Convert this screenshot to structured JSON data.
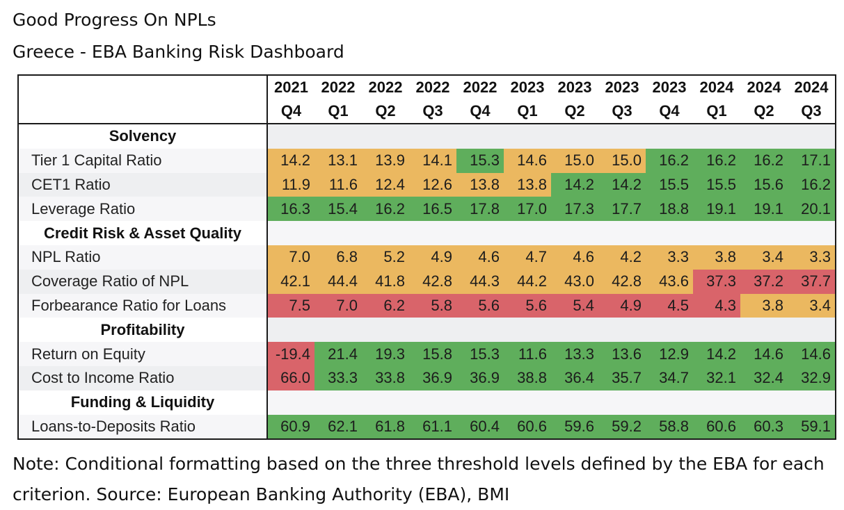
{
  "header": {
    "title": "Good Progress On NPLs",
    "subtitle": "Greece - EBA Banking Risk Dashboard"
  },
  "note": "Note: Conditional formatting based on the three threshold levels defined by the EBA for each criterion. Source: European Banking Authority (EBA), BMI",
  "colors": {
    "amber": "#EBB860",
    "green": "#5FAE5C",
    "red": "#D9646A",
    "section_bg": "#EEEFF1"
  },
  "chart_data": {
    "type": "table",
    "title": "Good Progress On NPLs",
    "subtitle": "Greece - EBA Banking Risk Dashboard",
    "columns": [
      {
        "year": "2021",
        "quarter": "Q4"
      },
      {
        "year": "2022",
        "quarter": "Q1"
      },
      {
        "year": "2022",
        "quarter": "Q2"
      },
      {
        "year": "2022",
        "quarter": "Q3"
      },
      {
        "year": "2022",
        "quarter": "Q4"
      },
      {
        "year": "2023",
        "quarter": "Q1"
      },
      {
        "year": "2023",
        "quarter": "Q2"
      },
      {
        "year": "2023",
        "quarter": "Q3"
      },
      {
        "year": "2023",
        "quarter": "Q4"
      },
      {
        "year": "2024",
        "quarter": "Q1"
      },
      {
        "year": "2024",
        "quarter": "Q2"
      },
      {
        "year": "2024",
        "quarter": "Q3"
      }
    ],
    "rows": [
      {
        "type": "section",
        "label": "Solvency"
      },
      {
        "type": "metric",
        "label": "Tier 1 Capital Ratio",
        "values": [
          "14.2",
          "13.1",
          "13.9",
          "14.1",
          "15.3",
          "14.6",
          "15.0",
          "15.0",
          "16.2",
          "16.2",
          "16.2",
          "17.1"
        ],
        "status": [
          "amber",
          "amber",
          "amber",
          "amber",
          "green",
          "amber",
          "amber",
          "amber",
          "green",
          "green",
          "green",
          "green"
        ]
      },
      {
        "type": "metric",
        "label": "CET1 Ratio",
        "values": [
          "11.9",
          "11.6",
          "12.4",
          "12.6",
          "13.8",
          "13.8",
          "14.2",
          "14.2",
          "15.5",
          "15.5",
          "15.6",
          "16.2"
        ],
        "status": [
          "amber",
          "amber",
          "amber",
          "amber",
          "amber",
          "amber",
          "green",
          "green",
          "green",
          "green",
          "green",
          "green"
        ]
      },
      {
        "type": "metric",
        "label": "Leverage Ratio",
        "values": [
          "16.3",
          "15.4",
          "16.2",
          "16.5",
          "17.8",
          "17.0",
          "17.3",
          "17.7",
          "18.8",
          "19.1",
          "19.1",
          "20.1"
        ],
        "status": [
          "green",
          "green",
          "green",
          "green",
          "green",
          "green",
          "green",
          "green",
          "green",
          "green",
          "green",
          "green"
        ]
      },
      {
        "type": "section",
        "label": "Credit Risk & Asset Quality"
      },
      {
        "type": "metric",
        "label": "NPL Ratio",
        "values": [
          "7.0",
          "6.8",
          "5.2",
          "4.9",
          "4.6",
          "4.7",
          "4.6",
          "4.2",
          "3.3",
          "3.8",
          "3.4",
          "3.3"
        ],
        "status": [
          "amber",
          "amber",
          "amber",
          "amber",
          "amber",
          "amber",
          "amber",
          "amber",
          "amber",
          "amber",
          "amber",
          "amber"
        ]
      },
      {
        "type": "metric",
        "label": "Coverage Ratio of NPL",
        "values": [
          "42.1",
          "44.4",
          "41.8",
          "42.8",
          "44.3",
          "44.2",
          "43.0",
          "42.8",
          "43.6",
          "37.3",
          "37.2",
          "37.7"
        ],
        "status": [
          "amber",
          "amber",
          "amber",
          "amber",
          "amber",
          "amber",
          "amber",
          "amber",
          "amber",
          "red",
          "red",
          "red"
        ]
      },
      {
        "type": "metric",
        "label": "Forbearance Ratio for Loans",
        "values": [
          "7.5",
          "7.0",
          "6.2",
          "5.8",
          "5.6",
          "5.6",
          "5.4",
          "4.9",
          "4.5",
          "4.3",
          "3.8",
          "3.4"
        ],
        "status": [
          "red",
          "red",
          "red",
          "red",
          "red",
          "red",
          "red",
          "red",
          "red",
          "red",
          "amber",
          "amber"
        ]
      },
      {
        "type": "section",
        "label": "Profitability"
      },
      {
        "type": "metric",
        "label": "Return on Equity",
        "values": [
          "-19.4",
          "21.4",
          "19.3",
          "15.8",
          "15.3",
          "11.6",
          "13.3",
          "13.6",
          "12.9",
          "14.2",
          "14.6",
          "14.6"
        ],
        "status": [
          "red",
          "green",
          "green",
          "green",
          "green",
          "green",
          "green",
          "green",
          "green",
          "green",
          "green",
          "green"
        ]
      },
      {
        "type": "metric",
        "label": "Cost to Income Ratio",
        "values": [
          "66.0",
          "33.3",
          "33.8",
          "36.9",
          "36.9",
          "38.8",
          "36.4",
          "35.7",
          "34.7",
          "32.1",
          "32.4",
          "32.9"
        ],
        "status": [
          "red",
          "green",
          "green",
          "green",
          "green",
          "green",
          "green",
          "green",
          "green",
          "green",
          "green",
          "green"
        ]
      },
      {
        "type": "section",
        "label": "Funding & Liquidity"
      },
      {
        "type": "metric",
        "label": "Loans-to-Deposits Ratio",
        "values": [
          "60.9",
          "62.1",
          "61.8",
          "61.1",
          "60.4",
          "60.6",
          "59.6",
          "59.2",
          "58.8",
          "60.6",
          "60.3",
          "59.1"
        ],
        "status": [
          "green",
          "green",
          "green",
          "green",
          "green",
          "green",
          "green",
          "green",
          "green",
          "green",
          "green",
          "green"
        ]
      }
    ]
  }
}
